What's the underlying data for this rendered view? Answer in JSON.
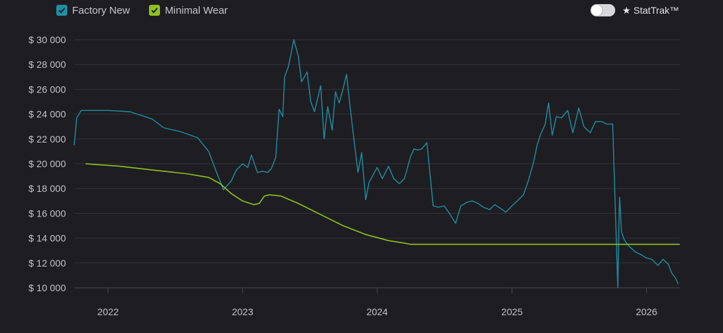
{
  "legend": {
    "items": [
      {
        "label": "Factory New",
        "checked": true,
        "color": "#1e8fa3"
      },
      {
        "label": "Minimal Wear",
        "checked": true,
        "color": "#8fc21f"
      }
    ]
  },
  "toggle": {
    "label": "★ StatTrak™",
    "on": false
  },
  "chart_data": {
    "type": "line",
    "title": "",
    "xlabel": "",
    "ylabel": "",
    "ylim": [
      10000,
      30000
    ],
    "xlim": [
      "2021-10-01",
      "2026-04-01"
    ],
    "y_ticks": [
      10000,
      12000,
      14000,
      16000,
      18000,
      20000,
      22000,
      24000,
      26000,
      28000,
      30000
    ],
    "y_tick_labels": [
      "$ 10 000",
      "$ 12 000",
      "$ 14 000",
      "$ 16 000",
      "$ 18 000",
      "$ 20 000",
      "$ 22 000",
      "$ 24 000",
      "$ 26 000",
      "$ 28 000",
      "$ 30 000"
    ],
    "x_ticks": [
      "2022-01-01",
      "2023-01-01",
      "2024-01-01",
      "2025-01-01",
      "2026-01-01"
    ],
    "x_tick_labels": [
      "2022",
      "2023",
      "2024",
      "2025",
      "2026"
    ],
    "grid": true,
    "legend_position": "top-left",
    "series": [
      {
        "name": "Factory New",
        "color": "#1e8fa3",
        "x": [
          "2021-10-01",
          "2021-10-08",
          "2021-10-20",
          "2022-01-01",
          "2022-03-01",
          "2022-05-01",
          "2022-06-01",
          "2022-07-15",
          "2022-09-01",
          "2022-10-01",
          "2022-10-20",
          "2022-11-10",
          "2022-12-01",
          "2022-12-15",
          "2023-01-01",
          "2023-01-15",
          "2023-01-25",
          "2023-02-10",
          "2023-02-25",
          "2023-03-10",
          "2023-03-20",
          "2023-04-01",
          "2023-04-10",
          "2023-04-20",
          "2023-04-25",
          "2023-05-05",
          "2023-05-20",
          "2023-06-01",
          "2023-06-10",
          "2023-06-25",
          "2023-07-05",
          "2023-07-15",
          "2023-08-01",
          "2023-08-10",
          "2023-08-20",
          "2023-09-01",
          "2023-09-10",
          "2023-09-20",
          "2023-10-01",
          "2023-10-10",
          "2023-10-20",
          "2023-11-01",
          "2023-11-10",
          "2023-11-20",
          "2023-12-01",
          "2023-12-10",
          "2024-01-01",
          "2024-01-15",
          "2024-02-01",
          "2024-02-15",
          "2024-03-01",
          "2024-03-15",
          "2024-04-01",
          "2024-04-10",
          "2024-04-20",
          "2024-05-01",
          "2024-05-15",
          "2024-06-01",
          "2024-06-15",
          "2024-07-01",
          "2024-07-15",
          "2024-08-01",
          "2024-08-15",
          "2024-09-01",
          "2024-09-15",
          "2024-10-01",
          "2024-10-15",
          "2024-11-01",
          "2024-11-15",
          "2024-12-01",
          "2024-12-15",
          "2025-01-01",
          "2025-01-15",
          "2025-02-01",
          "2025-02-15",
          "2025-03-01",
          "2025-03-10",
          "2025-03-20",
          "2025-04-01",
          "2025-04-10",
          "2025-04-20",
          "2025-05-01",
          "2025-05-15",
          "2025-06-01",
          "2025-06-15",
          "2025-07-01",
          "2025-07-15",
          "2025-08-01",
          "2025-08-15",
          "2025-09-01",
          "2025-09-15",
          "2025-10-01",
          "2025-10-15",
          "2025-10-18",
          "2025-10-20",
          "2025-10-25",
          "2025-11-01",
          "2025-11-10",
          "2025-11-20",
          "2025-12-01",
          "2025-12-15",
          "2026-01-01",
          "2026-01-15",
          "2026-02-01",
          "2026-02-15",
          "2026-03-01",
          "2026-03-10",
          "2026-03-20",
          "2026-03-28"
        ],
        "values": [
          21500,
          23700,
          24300,
          24300,
          24200,
          23600,
          22900,
          22600,
          22100,
          21000,
          19500,
          17900,
          18600,
          19500,
          20000,
          19700,
          20700,
          19300,
          19400,
          19300,
          19600,
          20500,
          24400,
          23800,
          27000,
          27800,
          30000,
          28700,
          26600,
          27400,
          25000,
          24200,
          26300,
          22000,
          24600,
          22700,
          25800,
          24900,
          26100,
          27200,
          24500,
          21500,
          19300,
          20900,
          17100,
          18500,
          19700,
          18800,
          19800,
          18800,
          18400,
          18800,
          20600,
          21200,
          21100,
          21200,
          21700,
          16600,
          16500,
          16600,
          16000,
          15200,
          16600,
          16900,
          17000,
          16800,
          16500,
          16300,
          16700,
          16400,
          16100,
          16600,
          17000,
          17500,
          18700,
          20200,
          21500,
          22400,
          23200,
          24900,
          22300,
          23800,
          23700,
          24300,
          22500,
          24500,
          23000,
          22500,
          23400,
          23400,
          23200,
          23200,
          10000,
          15000,
          17300,
          14500,
          13900,
          13500,
          13200,
          12900,
          12700,
          12400,
          12300,
          11800,
          12300,
          11900,
          11200,
          10800,
          10300
        ]
      },
      {
        "name": "Minimal Wear",
        "color": "#8fc21f",
        "x": [
          "2021-11-01",
          "2022-02-01",
          "2022-05-01",
          "2022-08-01",
          "2022-10-01",
          "2022-11-01",
          "2022-12-01",
          "2023-01-01",
          "2023-02-01",
          "2023-02-15",
          "2023-03-01",
          "2023-03-15",
          "2023-04-15",
          "2023-06-01",
          "2023-08-01",
          "2023-10-01",
          "2023-12-01",
          "2024-02-01",
          "2024-03-15",
          "2024-04-01",
          "2024-05-01",
          "2025-01-01",
          "2026-01-01",
          "2026-04-01"
        ],
        "values": [
          20000,
          19800,
          19500,
          19200,
          18900,
          18400,
          17600,
          17000,
          16700,
          16800,
          17400,
          17500,
          17400,
          16800,
          15900,
          15000,
          14300,
          13800,
          13600,
          13500,
          13500,
          13500,
          13500,
          13500
        ]
      }
    ]
  }
}
